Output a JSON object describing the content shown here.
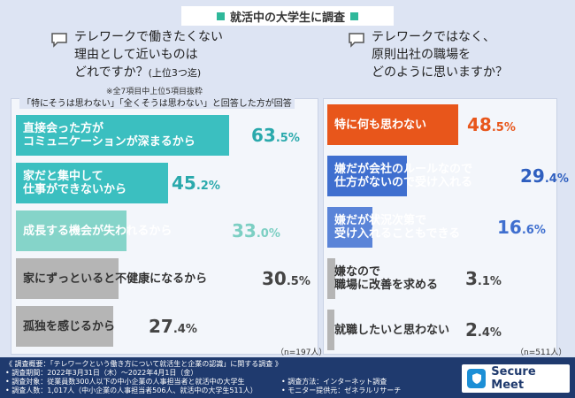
{
  "header": {
    "title": "就活中の大学生に調査"
  },
  "left": {
    "question_lines": [
      "テレワークで働きたくない",
      "理由として近いものは",
      "どれですか？"
    ],
    "question_suffix": "(上位3つ迄)",
    "note": "※全7項目中上位5項目抜粋",
    "box_title": "「特にそうは思わない」「全くそうは思わない」と回答した方が回答",
    "n_label": "（n=197人）"
  },
  "right": {
    "question_lines": [
      "テレワークではなく、",
      "原則出社の職場を",
      "どのように思いますか？"
    ],
    "n_label": "（n=511人）"
  },
  "chart_data": [
    {
      "type": "bar",
      "title": "テレワークで働きたくない理由として近いものはどれですか？(上位3つ迄)",
      "categories": [
        "直接会った方がコミュニケーションが深まるから",
        "家だと集中して仕事ができないから",
        "成長する機会が失われるから",
        "家にずっといると不健康になるから",
        "孤独を感じるから"
      ],
      "category_lines": [
        [
          "直接会った方が",
          "コミュニケーションが深まるから"
        ],
        [
          "家だと集中して",
          "仕事ができないから"
        ],
        [
          "成長する機会が失われるから"
        ],
        [
          "家にずっといると不健康になるから"
        ],
        [
          "孤独を感じるから"
        ]
      ],
      "values": [
        63.5,
        45.2,
        33.0,
        30.5,
        27.4
      ],
      "value_labels": [
        [
          "63",
          ".5%"
        ],
        [
          "45",
          ".2%"
        ],
        [
          "33",
          ".0%"
        ],
        [
          "30",
          ".5%"
        ],
        [
          "27",
          ".4%"
        ]
      ],
      "colors": [
        "#3bbfc0",
        "#3bbfc0",
        "#85d4c9",
        "#b5b5b5",
        "#b5b5b5"
      ],
      "label_colors": [
        "#ffffff",
        "#ffffff",
        "#ffffff",
        "#333333",
        "#333333"
      ],
      "value_colors": [
        "#2aa9ac",
        "#2aa9ac",
        "#7ccfc3",
        "#444444",
        "#444444"
      ],
      "unit": "%"
    },
    {
      "type": "bar",
      "title": "テレワークではなく、原則出社の職場をどのように思いますか？",
      "categories": [
        "特に何も思わない",
        "嫌だが会社のルールなので仕方がないので受け入れる",
        "嫌だが状況次第で受け入れることもできる",
        "嫌なので職場に改善を求める",
        "就職したいと思わない"
      ],
      "category_lines": [
        [
          "特に何も思わない"
        ],
        [
          "嫌だが会社のルールなので",
          "仕方がないので受け入れる"
        ],
        [
          "嫌だが状況次第で",
          "受け入れることもできる"
        ],
        [
          "嫌なので",
          "職場に改善を求める"
        ],
        [
          "就職したいと思わない"
        ]
      ],
      "values": [
        48.5,
        29.4,
        16.6,
        3.1,
        2.4
      ],
      "value_labels": [
        [
          "48",
          ".5%"
        ],
        [
          "29",
          ".4%"
        ],
        [
          "16",
          ".6%"
        ],
        [
          "3",
          ".1%"
        ],
        [
          "2",
          ".4%"
        ]
      ],
      "colors": [
        "#e8561b",
        "#3f6fcf",
        "#5a84d8",
        "#b5b5b5",
        "#b5b5b5"
      ],
      "label_colors": [
        "#ffffff",
        "#ffffff",
        "#ffffff",
        "#333333",
        "#333333"
      ],
      "value_colors": [
        "#e8561b",
        "#2f5fbf",
        "#3f6fcf",
        "#444444",
        "#444444"
      ],
      "unit": "%"
    }
  ],
  "footer": {
    "lines_left": [
      "《 調査概要：「テレワークという働き方について就活生と企業の認識」に関する調査 》",
      "• 調査期間：2022年3月31日（木）～2022年4月1日（金）",
      "• 調査対象：従業員数300人以下の中小企業の人事担当者と就活中の大学生",
      "• 調査人数：1,017人（中小企業の人事担当者506人、就活中の大学生511人）"
    ],
    "lines_right": [
      "• 調査方法：インターネット調査",
      "• モニター提供元：ゼネラルリサーチ"
    ],
    "logo_text": "Secure Meet"
  }
}
